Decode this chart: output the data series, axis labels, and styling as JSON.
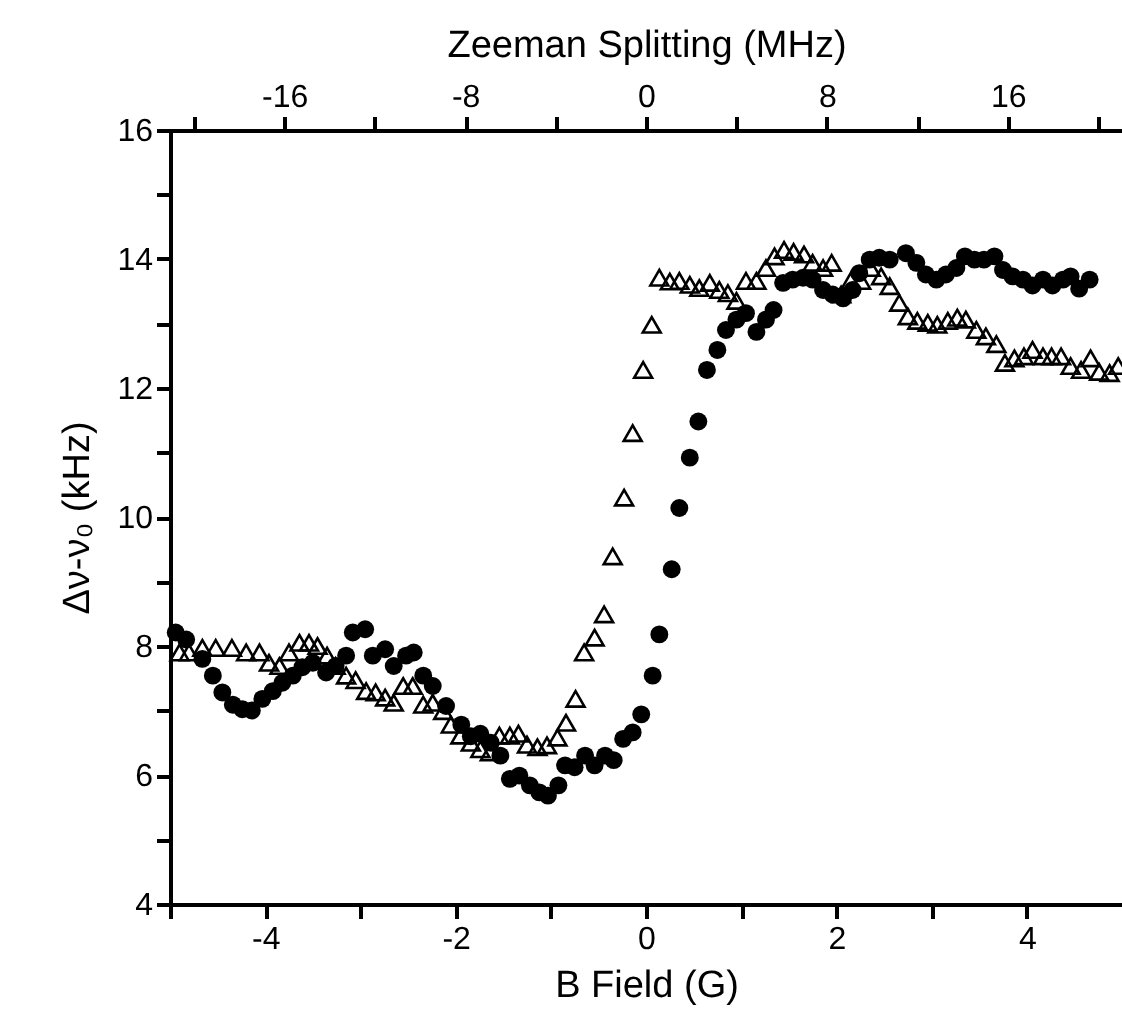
{
  "chart_data": {
    "type": "scatter",
    "xlabel": "B Field (G)",
    "ylabel": "Δν-ν₀ (kHz)",
    "x2label": "Zeeman Splitting (MHz)",
    "xlim": [
      -5,
      5
    ],
    "xticks": [
      {
        "value": -5,
        "label": null
      },
      -4,
      {
        "value": -3,
        "label": null
      },
      -2,
      {
        "value": -1,
        "label": null
      },
      0,
      {
        "value": 1,
        "label": null
      },
      2,
      {
        "value": 3,
        "label": null
      },
      4
    ],
    "ylim": [
      4,
      16
    ],
    "yticks": [
      4,
      {
        "value": 5,
        "label": null
      },
      6,
      {
        "value": 7,
        "label": null
      },
      8,
      {
        "value": 9,
        "label": null
      },
      10,
      {
        "value": 11,
        "label": null
      },
      12,
      {
        "value": 13,
        "label": null
      },
      14,
      {
        "value": 15,
        "label": null
      },
      16
    ],
    "x2lim": [
      -21.05,
      21.05
    ],
    "x2ticks": [
      {
        "value": -20,
        "label": null
      },
      -16,
      {
        "value": -12,
        "label": null
      },
      -8,
      {
        "value": -4,
        "label": null
      },
      0,
      {
        "value": 4,
        "label": null
      },
      8,
      {
        "value": 12,
        "label": null
      },
      16,
      {
        "value": 20,
        "label": null
      }
    ],
    "grid": false,
    "series": [
      {
        "marker": "circle",
        "color": "#000000",
        "x": [
          -4.94,
          -4.83,
          -4.66,
          -4.55,
          -4.45,
          -4.34,
          -4.24,
          -4.14,
          -4.03,
          -3.92,
          -3.82,
          -3.71,
          -3.61,
          -3.5,
          -3.36,
          -3.26,
          -3.15,
          -3.08,
          -2.95,
          -2.87,
          -2.74,
          -2.65,
          -2.52,
          -2.44,
          -2.34,
          -2.24,
          -2.1,
          -1.94,
          -1.84,
          -1.74,
          -1.63,
          -1.53,
          -1.43,
          -1.33,
          -1.22,
          -1.12,
          -1.03,
          -0.92,
          -0.85,
          -0.75,
          -0.64,
          -0.54,
          -0.43,
          -0.34,
          -0.24,
          -0.14,
          -0.05,
          0.07,
          0.14,
          0.27,
          0.35,
          0.46,
          0.55,
          0.64,
          0.75,
          0.84,
          0.95,
          1.05,
          1.16,
          1.26,
          1.34,
          1.44,
          1.54,
          1.65,
          1.75,
          1.86,
          1.96,
          2.07,
          2.17,
          2.24,
          2.35,
          2.45,
          2.56,
          2.73,
          2.84,
          2.94,
          3.05,
          3.15,
          3.26,
          3.35,
          3.45,
          3.55,
          3.66,
          3.75,
          3.85,
          3.96,
          4.06,
          4.17,
          4.27,
          4.38,
          4.46,
          4.55,
          4.66
        ],
        "values": [
          8.21,
          8.1,
          7.8,
          7.54,
          7.28,
          7.09,
          7.02,
          7.0,
          7.18,
          7.3,
          7.43,
          7.54,
          7.67,
          7.74,
          7.59,
          7.69,
          7.85,
          8.21,
          8.26,
          7.85,
          7.95,
          7.69,
          7.85,
          7.9,
          7.54,
          7.38,
          7.07,
          6.78,
          6.6,
          6.64,
          6.5,
          6.3,
          5.94,
          5.99,
          5.84,
          5.73,
          5.68,
          5.84,
          6.15,
          6.12,
          6.3,
          6.15,
          6.3,
          6.23,
          6.56,
          6.66,
          6.94,
          7.54,
          8.18,
          9.19,
          10.14,
          10.92,
          11.48,
          12.28,
          12.59,
          12.9,
          13.06,
          13.16,
          12.87,
          13.06,
          13.21,
          13.63,
          13.68,
          13.71,
          13.68,
          13.52,
          13.45,
          13.39,
          13.52,
          13.78,
          13.99,
          14.02,
          13.99,
          14.09,
          13.94,
          13.76,
          13.68,
          13.76,
          13.86,
          14.04,
          13.99,
          13.99,
          14.04,
          13.83,
          13.73,
          13.68,
          13.59,
          13.68,
          13.59,
          13.68,
          13.73,
          13.54,
          13.68
        ]
      },
      {
        "marker": "triangle",
        "color": "#000000",
        "x": [
          -4.9,
          -4.8,
          -4.66,
          -4.52,
          -4.35,
          -4.2,
          -4.06,
          -3.96,
          -3.85,
          -3.75,
          -3.64,
          -3.54,
          -3.45,
          -3.35,
          -3.26,
          -3.15,
          -3.05,
          -2.94,
          -2.84,
          -2.74,
          -2.65,
          -2.55,
          -2.45,
          -2.34,
          -2.24,
          -2.13,
          -2.05,
          -1.95,
          -1.84,
          -1.74,
          -1.64,
          -1.54,
          -1.43,
          -1.34,
          -1.25,
          -1.14,
          -1.04,
          -0.93,
          -0.84,
          -0.74,
          -0.65,
          -0.54,
          -0.44,
          -0.35,
          -0.23,
          -0.14,
          -0.03,
          0.06,
          0.14,
          0.25,
          0.35,
          0.46,
          0.56,
          0.67,
          0.77,
          0.86,
          0.95,
          1.05,
          1.16,
          1.26,
          1.35,
          1.45,
          1.55,
          1.66,
          1.75,
          1.86,
          1.95,
          2.05,
          2.15,
          2.26,
          2.36,
          2.47,
          2.56,
          2.66,
          2.75,
          2.85,
          2.96,
          3.06,
          3.17,
          3.27,
          3.36,
          3.47,
          3.57,
          3.68,
          3.77,
          3.87,
          3.97,
          4.06,
          4.17,
          4.26,
          4.36,
          4.46,
          4.57,
          4.67,
          4.76,
          4.87,
          4.96
        ],
        "values": [
          7.9,
          7.9,
          7.97,
          7.97,
          7.97,
          7.9,
          7.9,
          7.74,
          7.69,
          7.9,
          8.05,
          8.05,
          8.0,
          7.85,
          7.69,
          7.54,
          7.47,
          7.3,
          7.28,
          7.2,
          7.12,
          7.38,
          7.38,
          7.09,
          7.12,
          6.99,
          6.78,
          6.61,
          6.5,
          6.4,
          6.35,
          6.61,
          6.61,
          6.64,
          6.47,
          6.43,
          6.46,
          6.58,
          6.81,
          7.18,
          7.9,
          8.13,
          8.49,
          9.39,
          10.3,
          11.3,
          12.28,
          12.98,
          13.71,
          13.65,
          13.66,
          13.6,
          13.55,
          13.63,
          13.52,
          13.47,
          13.35,
          13.66,
          13.66,
          13.86,
          14.04,
          14.14,
          14.11,
          14.07,
          13.94,
          13.86,
          13.94,
          13.45,
          13.66,
          13.66,
          13.86,
          13.73,
          13.58,
          13.32,
          13.11,
          13.04,
          13.01,
          12.98,
          13.04,
          13.09,
          13.06,
          12.9,
          12.8,
          12.68,
          12.39,
          12.46,
          12.49,
          12.59,
          12.49,
          12.49,
          12.49,
          12.34,
          12.28,
          12.46,
          12.25,
          12.23,
          12.34
        ]
      }
    ]
  }
}
